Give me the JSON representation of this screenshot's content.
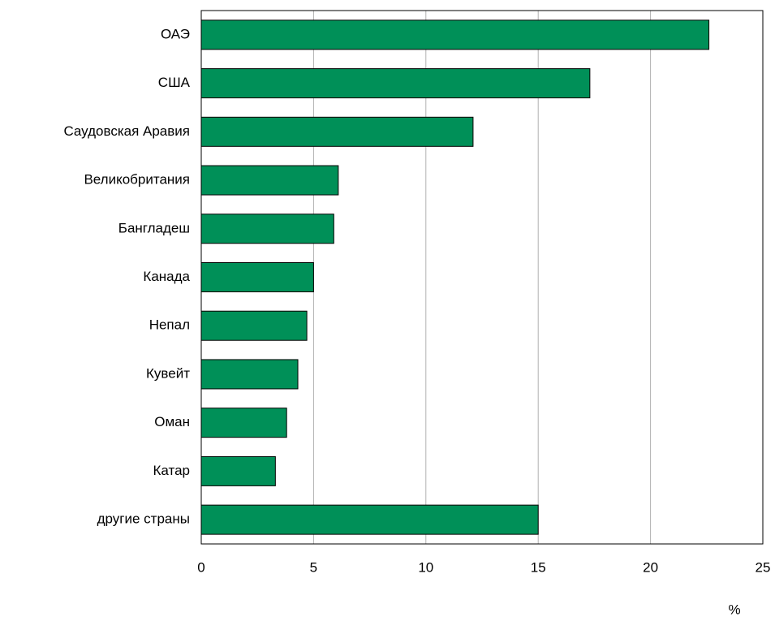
{
  "chart_data": {
    "type": "bar",
    "orientation": "horizontal",
    "categories": [
      "ОАЭ",
      "США",
      "Саудовская Аравия",
      "Великобритания",
      "Бангладеш",
      "Канада",
      "Непал",
      "Кувейт",
      "Оман",
      "Катар",
      "другие страны"
    ],
    "values": [
      22.6,
      17.3,
      12.1,
      6.1,
      5.9,
      5.0,
      4.7,
      4.3,
      3.8,
      3.3,
      15.0
    ],
    "color": "#009058",
    "xlim": [
      0,
      25
    ],
    "xticks": [
      0,
      5,
      10,
      15,
      20,
      25
    ],
    "x_label": "%",
    "grid": true
  }
}
